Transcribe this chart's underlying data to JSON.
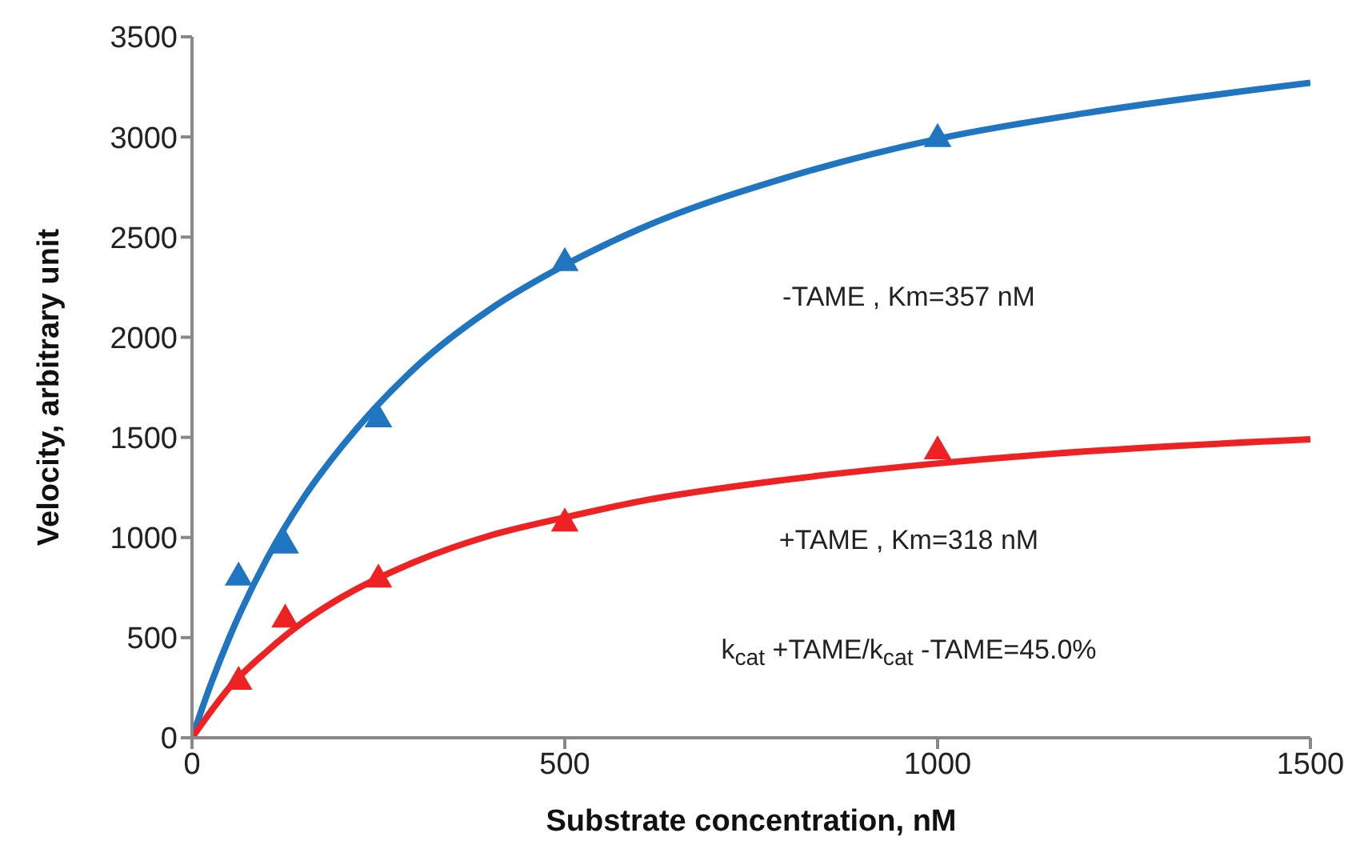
{
  "chart_data": {
    "type": "scatter",
    "xlabel": "Substrate concentration, nM",
    "ylabel": "Velocity, arbitrary unit",
    "xlim": [
      0,
      1500
    ],
    "xticks": [
      0,
      500,
      1000,
      1500
    ],
    "ylim": [
      0,
      3500
    ],
    "yticks": [
      0,
      500,
      1000,
      1500,
      2000,
      2500,
      3000,
      3500
    ],
    "grid": false,
    "legend": false,
    "annotations": [
      "-TAME , Km=357 nM",
      "+TAME , Km=318 nM",
      "k$_{cat}$ +TAME/k$_{cat}$ -TAME=45.0%"
    ],
    "series": [
      {
        "type": "line",
        "color": "#1f75c0",
        "marker": "none",
        "x": [
          0,
          25,
          50,
          100,
          150,
          200,
          300,
          400,
          500,
          600,
          800,
          1000,
          1200,
          1500
        ],
        "values": [
          0,
          265,
          500,
          890,
          1200,
          1450,
          1850,
          2140,
          2360,
          2540,
          2800,
          2990,
          3120,
          3270
        ]
      },
      {
        "type": "line",
        "color": "#ee2222",
        "marker": "none",
        "x": [
          0,
          25,
          50,
          100,
          150,
          200,
          300,
          400,
          500,
          600,
          800,
          1000,
          1200,
          1500
        ],
        "values": [
          0,
          130,
          250,
          430,
          580,
          700,
          880,
          1010,
          1100,
          1180,
          1290,
          1370,
          1430,
          1490
        ]
      },
      {
        "color": "#1f75c0",
        "marker": "triangle",
        "x": [
          62.5,
          125,
          250,
          500,
          1000
        ],
        "values": [
          800,
          960,
          1590,
          2370,
          2990
        ]
      },
      {
        "color": "#ee2222",
        "marker": "triangle",
        "x": [
          62.5,
          125,
          250,
          500,
          1000
        ],
        "values": [
          280,
          590,
          790,
          1070,
          1430
        ]
      }
    ]
  }
}
